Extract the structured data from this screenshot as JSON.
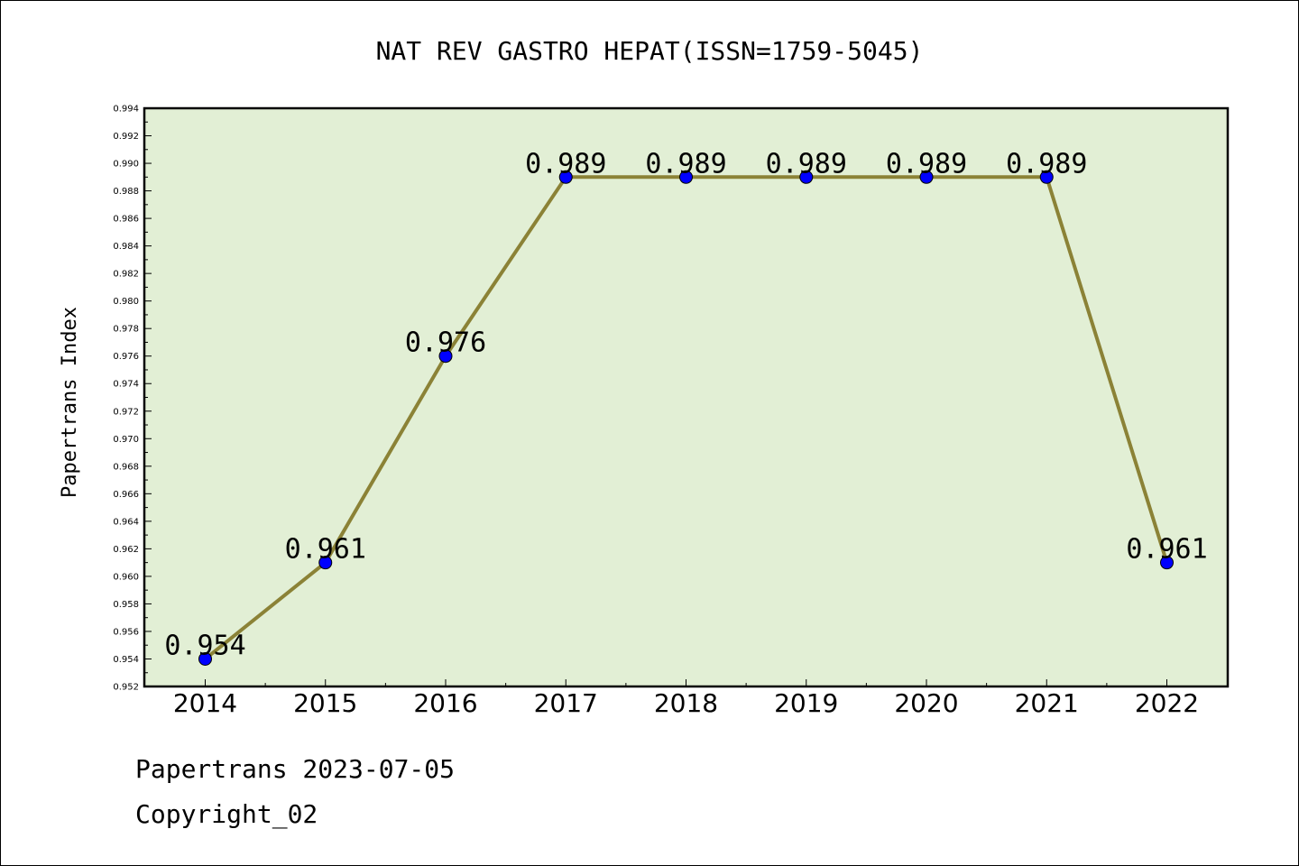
{
  "chart_data": {
    "type": "line",
    "title": "NAT REV GASTRO HEPAT(ISSN=1759-5045)",
    "xlabel": "",
    "ylabel": "Papertrans Index",
    "categories": [
      "2014",
      "2015",
      "2016",
      "2017",
      "2018",
      "2019",
      "2020",
      "2021",
      "2022"
    ],
    "series": [
      {
        "values": [
          0.954,
          0.961,
          0.976,
          0.989,
          0.989,
          0.989,
          0.989,
          0.989,
          0.961
        ]
      }
    ],
    "data_labels": [
      "0.954",
      "0.961",
      "0.976",
      "0.989",
      "0.989",
      "0.989",
      "0.989",
      "0.989",
      "0.961"
    ],
    "ylim": [
      0.952,
      0.994
    ],
    "yticks": [
      "0.952",
      "0.954",
      "0.956",
      "0.958",
      "0.960",
      "0.962",
      "0.964",
      "0.966",
      "0.968",
      "0.970",
      "0.972",
      "0.974",
      "0.976",
      "0.978",
      "0.980",
      "0.982",
      "0.984",
      "0.986",
      "0.988",
      "0.990",
      "0.992",
      "0.994"
    ],
    "grid": false,
    "legend": "none",
    "colors": {
      "plot_background": "#e2efd5",
      "line": "#8b8236",
      "marker": "#0000ff"
    }
  },
  "footer": {
    "line1": "Papertrans 2023-07-05",
    "line2": "Copyright_02"
  }
}
